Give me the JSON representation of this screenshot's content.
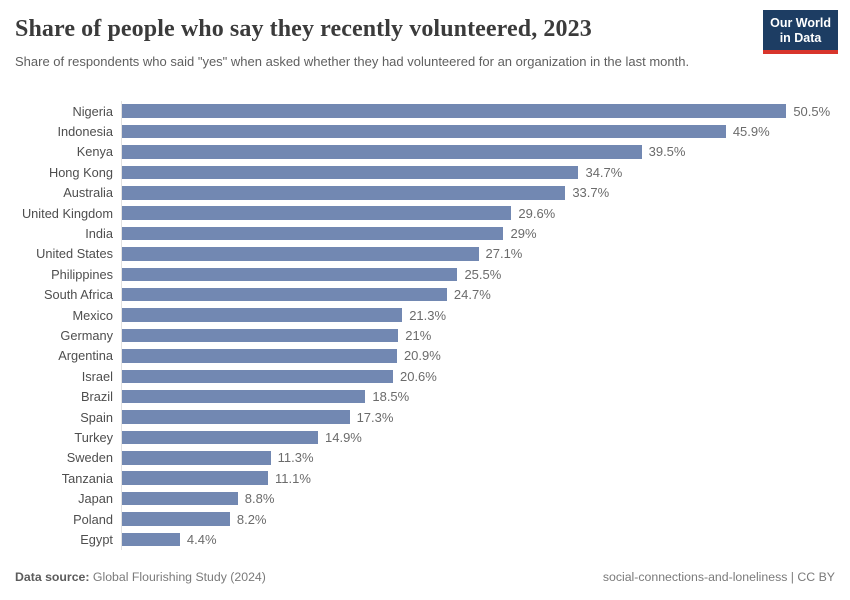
{
  "header": {
    "title": "Share of people who say they recently volunteered, 2023",
    "subtitle": "Share of respondents who said \"yes\" when asked whether they had volunteered for an organization in the last month.",
    "logo_line1": "Our World",
    "logo_line2": "in Data"
  },
  "chart_data": {
    "type": "bar",
    "orientation": "horizontal",
    "title": "Share of people who say they recently volunteered, 2023",
    "xlabel": "",
    "ylabel": "",
    "unit": "%",
    "xlim": [
      0,
      54.2
    ],
    "grid": false,
    "bar_color": "#7288b2",
    "axis_line_color": "#e2e2e2",
    "categories": [
      "Nigeria",
      "Indonesia",
      "Kenya",
      "Hong Kong",
      "Australia",
      "United Kingdom",
      "India",
      "United States",
      "Philippines",
      "South Africa",
      "Mexico",
      "Germany",
      "Argentina",
      "Israel",
      "Brazil",
      "Spain",
      "Turkey",
      "Sweden",
      "Tanzania",
      "Japan",
      "Poland",
      "Egypt"
    ],
    "values": [
      50.5,
      45.9,
      39.5,
      34.7,
      33.7,
      29.6,
      29,
      27.1,
      25.5,
      24.7,
      21.3,
      21,
      20.9,
      20.6,
      18.5,
      17.3,
      14.9,
      11.3,
      11.1,
      8.8,
      8.2,
      4.4
    ],
    "value_labels": [
      "50.5%",
      "45.9%",
      "39.5%",
      "34.7%",
      "33.7%",
      "29.6%",
      "29%",
      "27.1%",
      "25.5%",
      "24.7%",
      "21.3%",
      "21%",
      "20.9%",
      "20.6%",
      "18.5%",
      "17.3%",
      "14.9%",
      "11.3%",
      "11.1%",
      "8.8%",
      "8.2%",
      "4.4%"
    ]
  },
  "footer": {
    "source_label": "Data source:",
    "source_value": " Global Flourishing Study (2024)",
    "note": "social-connections-and-loneliness | CC BY"
  }
}
